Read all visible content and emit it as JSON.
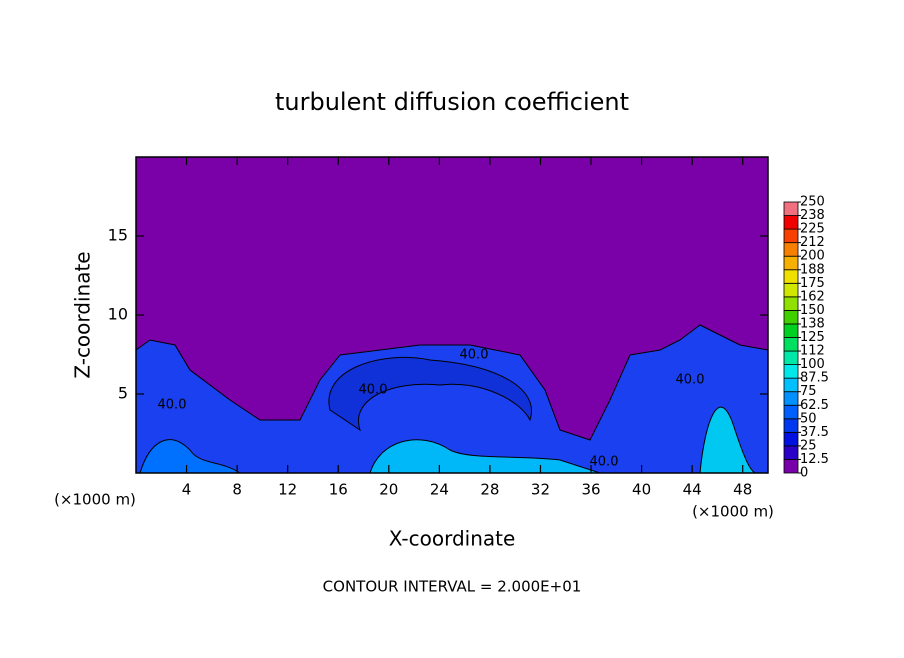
{
  "chart_data": {
    "type": "contour",
    "title": "turbulent diffusion coefficient",
    "x_label": "X-coordinate",
    "y_label": "Z-coordinate",
    "x_unit_label": "(×1000 m)",
    "footer": "CONTOUR INTERVAL = 2.000E+01",
    "xlim": [
      0,
      50
    ],
    "xticks": [
      4,
      8,
      12,
      16,
      20,
      24,
      28,
      32,
      36,
      40,
      44,
      48
    ],
    "ylim": [
      0,
      20
    ],
    "yticks": [
      5,
      10,
      15
    ],
    "contour_labels": [
      "40.0",
      "40.0",
      "40.0",
      "40.0",
      "40.0"
    ],
    "colorbar": {
      "ticks": [
        0,
        12.5,
        25,
        37.5,
        50,
        62.5,
        75,
        87.5,
        100,
        {
          "value": 112.5,
          "label": "112"
        },
        125,
        {
          "value": 137.5,
          "label": "138"
        },
        150,
        {
          "value": 162.5,
          "label": "162"
        },
        175,
        {
          "value": 187.5,
          "label": "188"
        },
        200,
        {
          "value": 212.5,
          "label": "212"
        },
        225,
        {
          "value": 237.5,
          "label": "238"
        },
        250
      ],
      "colors": [
        "#7800a8",
        "#2a00c8",
        "#0010e0",
        "#0038f0",
        "#0060ff",
        "#0090ff",
        "#00c0ff",
        "#00e8e8",
        "#00e8a8",
        "#00e060",
        "#00d020",
        "#40d000",
        "#90e000",
        "#d0e800",
        "#f0e000",
        "#f8b000",
        "#f88000",
        "#f84000",
        "#f00000",
        "#f07080"
      ]
    }
  }
}
